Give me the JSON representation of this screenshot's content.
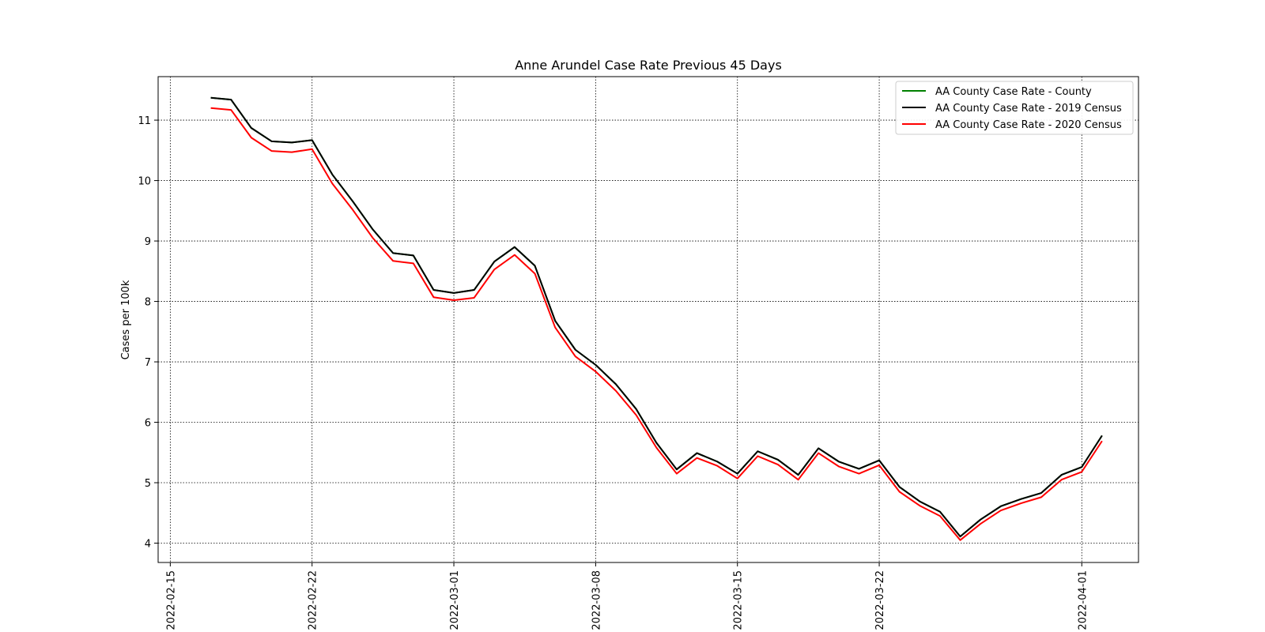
{
  "chart_data": {
    "type": "line",
    "title": "Anne Arundel Case Rate Previous 45 Days",
    "xlabel": "",
    "ylabel": "Cases per 100k",
    "x_start": "2022-02-17",
    "x_ticks": [
      "2022-02-15",
      "2022-02-22",
      "2022-03-01",
      "2022-03-08",
      "2022-03-15",
      "2022-03-22",
      "2022-04-01"
    ],
    "xlim": [
      "2022-02-14.4",
      "2022-04-03.8"
    ],
    "y_ticks": [
      4,
      5,
      6,
      7,
      8,
      9,
      10,
      11
    ],
    "ylim": [
      3.68,
      11.72
    ],
    "grid": true,
    "legend_position": "upper right",
    "series": [
      {
        "name": "AA County Case Rate - County",
        "color": "#008000",
        "values": [
          11.37,
          11.34,
          10.87,
          10.65,
          10.63,
          10.67,
          10.1,
          9.66,
          9.19,
          8.8,
          8.76,
          8.19,
          8.14,
          8.19,
          8.66,
          8.9,
          8.59,
          7.68,
          7.2,
          6.95,
          6.63,
          6.22,
          5.66,
          5.22,
          5.49,
          5.35,
          5.15,
          5.52,
          5.38,
          5.13,
          5.57,
          5.35,
          5.23,
          5.37,
          4.93,
          4.69,
          4.52,
          4.11,
          4.39,
          4.61,
          4.73,
          4.83,
          5.13,
          5.26,
          5.78
        ]
      },
      {
        "name": "AA County Case Rate - 2019 Census",
        "color": "#000000",
        "values": [
          11.37,
          11.34,
          10.87,
          10.65,
          10.63,
          10.67,
          10.1,
          9.66,
          9.19,
          8.8,
          8.76,
          8.19,
          8.14,
          8.19,
          8.66,
          8.9,
          8.59,
          7.68,
          7.2,
          6.95,
          6.63,
          6.22,
          5.66,
          5.22,
          5.49,
          5.35,
          5.15,
          5.52,
          5.38,
          5.13,
          5.57,
          5.35,
          5.23,
          5.37,
          4.93,
          4.69,
          4.52,
          4.11,
          4.39,
          4.61,
          4.73,
          4.83,
          5.13,
          5.26,
          5.78
        ]
      },
      {
        "name": "AA County Case Rate - 2020 Census",
        "color": "#ff0000",
        "values": [
          11.2,
          11.17,
          10.71,
          10.49,
          10.47,
          10.52,
          9.95,
          9.52,
          9.05,
          8.67,
          8.63,
          8.07,
          8.02,
          8.06,
          8.53,
          8.77,
          8.46,
          7.57,
          7.09,
          6.84,
          6.52,
          6.12,
          5.58,
          5.15,
          5.41,
          5.28,
          5.07,
          5.44,
          5.3,
          5.05,
          5.49,
          5.27,
          5.15,
          5.29,
          4.85,
          4.62,
          4.45,
          4.05,
          4.32,
          4.54,
          4.66,
          4.76,
          5.05,
          5.18,
          5.69
        ]
      }
    ]
  }
}
